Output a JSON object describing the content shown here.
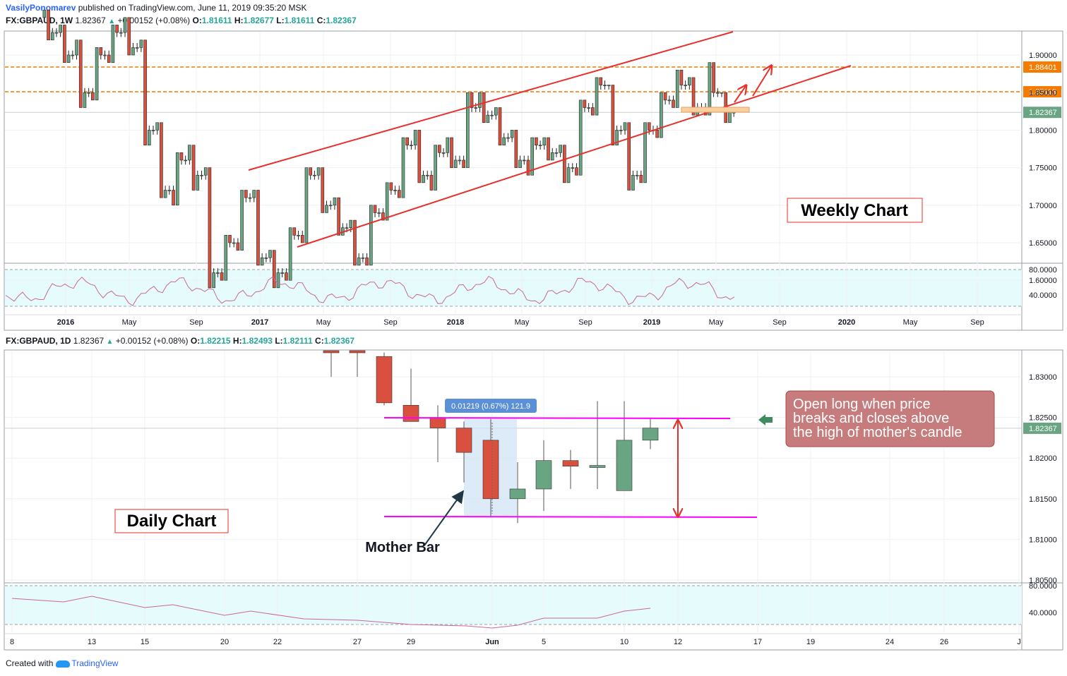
{
  "header": {
    "author": "VasilyPonomarev",
    "published": "published on TradingView.com, June 11, 2019 09:35:20 MSK"
  },
  "weekly": {
    "symbol": "FX:GBPAUD, 1W",
    "price": "1.82367",
    "change": "+0.00152 (+0.08%)",
    "open": "1.81611",
    "high": "1.82677",
    "low": "1.81611",
    "close": "1.82367",
    "annotation": "Weekly Chart",
    "price_ticks": [
      "1.90000",
      "1.85000",
      "1.80000",
      "1.75000",
      "1.70000",
      "1.65000",
      "1.60000"
    ],
    "rsi_ticks": [
      "80.0000",
      "40.0000"
    ],
    "time_ticks": [
      "2016",
      "May",
      "Sep",
      "2017",
      "May",
      "Sep",
      "2018",
      "May",
      "Sep",
      "2019",
      "May",
      "Sep",
      "2020",
      "May",
      "Sep"
    ],
    "level_labels": [
      "1.88401",
      "1.85113"
    ],
    "last_price_label": "1.82367"
  },
  "daily": {
    "symbol": "FX:GBPAUD, 1D",
    "price": "1.82367",
    "change": "+0.00152 (+0.08%)",
    "open": "1.82215",
    "high": "1.82493",
    "low": "1.82111",
    "close": "1.82367",
    "annotation": "Daily Chart",
    "mother_bar": "Mother Bar",
    "measure": "0.01219 (0.67%) 121.9",
    "callout": [
      "Open long when price",
      "breaks and closes above",
      "the high of mother's candle"
    ],
    "price_ticks": [
      "1.83000",
      "1.82500",
      "1.82000",
      "1.81500",
      "1.81000",
      "1.80500"
    ],
    "rsi_ticks": [
      "80.0000",
      "40.0000"
    ],
    "time_ticks": [
      "8",
      "13",
      "15",
      "20",
      "22",
      "27",
      "29",
      "Jun",
      "5",
      "10",
      "12",
      "17",
      "19",
      "24",
      "26",
      "J"
    ],
    "last_price_label": "1.82367"
  },
  "footer": {
    "created": "Created with",
    "brand": "TradingView"
  },
  "colors": {
    "up": "#6aa583",
    "down": "#d9503f",
    "channel": "#e8302a",
    "level": "#f57c00",
    "magenta": "#ff00ff",
    "rsi_bg": "#e6fbfb",
    "rsi_line": "#c9679d",
    "last_price": "#6aa583"
  },
  "chart_data": [
    {
      "type": "candlestick",
      "title": "FX:GBPAUD, 1W",
      "ylim": [
        1.58,
        1.94
      ],
      "horizontal_levels": [
        1.88401,
        1.85113
      ],
      "last_close": 1.82367,
      "series": [
        {
          "x": "2015-12",
          "o": 1.95,
          "h": 1.96,
          "l": 1.92,
          "c": 1.93
        },
        {
          "x": "2016-01",
          "o": 1.93,
          "h": 1.94,
          "l": 1.89,
          "c": 1.9
        },
        {
          "x": "2016-02",
          "o": 1.9,
          "h": 1.92,
          "l": 1.83,
          "c": 1.85
        },
        {
          "x": "2016-03",
          "o": 1.85,
          "h": 1.91,
          "l": 1.84,
          "c": 1.9
        },
        {
          "x": "2016-04",
          "o": 1.9,
          "h": 1.94,
          "l": 1.89,
          "c": 1.93
        },
        {
          "x": "2016-05",
          "o": 1.93,
          "h": 1.95,
          "l": 1.9,
          "c": 1.91
        },
        {
          "x": "2016-06",
          "o": 1.91,
          "h": 1.92,
          "l": 1.78,
          "c": 1.8
        },
        {
          "x": "2016-07",
          "o": 1.8,
          "h": 1.81,
          "l": 1.71,
          "c": 1.72
        },
        {
          "x": "2016-08",
          "o": 1.72,
          "h": 1.77,
          "l": 1.7,
          "c": 1.76
        },
        {
          "x": "2016-09",
          "o": 1.76,
          "h": 1.78,
          "l": 1.72,
          "c": 1.74
        },
        {
          "x": "2016-10",
          "o": 1.74,
          "h": 1.75,
          "l": 1.59,
          "c": 1.61
        },
        {
          "x": "2016-11",
          "o": 1.61,
          "h": 1.66,
          "l": 1.6,
          "c": 1.65
        },
        {
          "x": "2016-12",
          "o": 1.65,
          "h": 1.72,
          "l": 1.64,
          "c": 1.71
        },
        {
          "x": "2017-01",
          "o": 1.71,
          "h": 1.72,
          "l": 1.62,
          "c": 1.63
        },
        {
          "x": "2017-02",
          "o": 1.63,
          "h": 1.64,
          "l": 1.59,
          "c": 1.61
        },
        {
          "x": "2017-03",
          "o": 1.61,
          "h": 1.67,
          "l": 1.6,
          "c": 1.66
        },
        {
          "x": "2017-04",
          "o": 1.66,
          "h": 1.75,
          "l": 1.65,
          "c": 1.74
        },
        {
          "x": "2017-05",
          "o": 1.74,
          "h": 1.75,
          "l": 1.69,
          "c": 1.7
        },
        {
          "x": "2017-06",
          "o": 1.7,
          "h": 1.71,
          "l": 1.66,
          "c": 1.67
        },
        {
          "x": "2017-07",
          "o": 1.67,
          "h": 1.68,
          "l": 1.62,
          "c": 1.63
        },
        {
          "x": "2017-08",
          "o": 1.63,
          "h": 1.7,
          "l": 1.62,
          "c": 1.69
        },
        {
          "x": "2017-09",
          "o": 1.69,
          "h": 1.73,
          "l": 1.68,
          "c": 1.72
        },
        {
          "x": "2017-10",
          "o": 1.72,
          "h": 1.79,
          "l": 1.71,
          "c": 1.78
        },
        {
          "x": "2017-11",
          "o": 1.78,
          "h": 1.8,
          "l": 1.73,
          "c": 1.74
        },
        {
          "x": "2017-12",
          "o": 1.74,
          "h": 1.78,
          "l": 1.72,
          "c": 1.77
        },
        {
          "x": "2018-01",
          "o": 1.77,
          "h": 1.79,
          "l": 1.75,
          "c": 1.76
        },
        {
          "x": "2018-02",
          "o": 1.76,
          "h": 1.85,
          "l": 1.75,
          "c": 1.83
        },
        {
          "x": "2018-03",
          "o": 1.83,
          "h": 1.85,
          "l": 1.81,
          "c": 1.82
        },
        {
          "x": "2018-04",
          "o": 1.82,
          "h": 1.83,
          "l": 1.78,
          "c": 1.79
        },
        {
          "x": "2018-05",
          "o": 1.79,
          "h": 1.8,
          "l": 1.75,
          "c": 1.76
        },
        {
          "x": "2018-06",
          "o": 1.76,
          "h": 1.79,
          "l": 1.74,
          "c": 1.78
        },
        {
          "x": "2018-07",
          "o": 1.78,
          "h": 1.79,
          "l": 1.76,
          "c": 1.77
        },
        {
          "x": "2018-08",
          "o": 1.77,
          "h": 1.78,
          "l": 1.73,
          "c": 1.75
        },
        {
          "x": "2018-09",
          "o": 1.75,
          "h": 1.84,
          "l": 1.74,
          "c": 1.83
        },
        {
          "x": "2018-10",
          "o": 1.83,
          "h": 1.87,
          "l": 1.82,
          "c": 1.86
        },
        {
          "x": "2018-11",
          "o": 1.86,
          "h": 1.86,
          "l": 1.78,
          "c": 1.8
        },
        {
          "x": "2018-12",
          "o": 1.8,
          "h": 1.81,
          "l": 1.72,
          "c": 1.74
        },
        {
          "x": "2019-01",
          "o": 1.74,
          "h": 1.81,
          "l": 1.73,
          "c": 1.8
        },
        {
          "x": "2019-02",
          "o": 1.8,
          "h": 1.85,
          "l": 1.79,
          "c": 1.84
        },
        {
          "x": "2019-03",
          "o": 1.84,
          "h": 1.88,
          "l": 1.83,
          "c": 1.86
        },
        {
          "x": "2019-04",
          "o": 1.86,
          "h": 1.87,
          "l": 1.82,
          "c": 1.83
        },
        {
          "x": "2019-05",
          "o": 1.83,
          "h": 1.89,
          "l": 1.82,
          "c": 1.85
        },
        {
          "x": "2019-06",
          "o": 1.85,
          "h": 1.85,
          "l": 1.81,
          "c": 1.8237
        }
      ]
    },
    {
      "type": "candlestick",
      "title": "FX:GBPAUD, 1D",
      "ylim": [
        1.805,
        1.834
      ],
      "horizontal_levels": [
        1.8248,
        1.8127
      ],
      "last_close": 1.82367,
      "series": [
        {
          "x": "May 24",
          "o": 1.837,
          "h": 1.841,
          "l": 1.83,
          "c": 1.833
        },
        {
          "x": "May 27",
          "o": 1.8338,
          "h": 1.836,
          "l": 1.83,
          "c": 1.833
        },
        {
          "x": "May 28",
          "o": 1.8325,
          "h": 1.833,
          "l": 1.8265,
          "c": 1.8268
        },
        {
          "x": "May 29",
          "o": 1.8265,
          "h": 1.831,
          "l": 1.8245,
          "c": 1.8245
        },
        {
          "x": "May 30",
          "o": 1.825,
          "h": 1.8265,
          "l": 1.8195,
          "c": 1.8237
        },
        {
          "x": "May 31",
          "o": 1.8237,
          "h": 1.8245,
          "l": 1.817,
          "c": 1.8207
        },
        {
          "x": "Jun 3",
          "o": 1.8222,
          "h": 1.8248,
          "l": 1.8127,
          "c": 1.815
        },
        {
          "x": "Jun 4",
          "o": 1.815,
          "h": 1.8195,
          "l": 1.812,
          "c": 1.8162
        },
        {
          "x": "Jun 5",
          "o": 1.8162,
          "h": 1.8222,
          "l": 1.8135,
          "c": 1.8197
        },
        {
          "x": "Jun 6",
          "o": 1.8197,
          "h": 1.821,
          "l": 1.8162,
          "c": 1.819
        },
        {
          "x": "Jun 7",
          "o": 1.8189,
          "h": 1.827,
          "l": 1.8162,
          "c": 1.8191
        },
        {
          "x": "Jun 10",
          "o": 1.816,
          "h": 1.827,
          "l": 1.816,
          "c": 1.8222
        },
        {
          "x": "Jun 11",
          "o": 1.8222,
          "h": 1.8249,
          "l": 1.8211,
          "c": 1.8237
        }
      ]
    }
  ]
}
